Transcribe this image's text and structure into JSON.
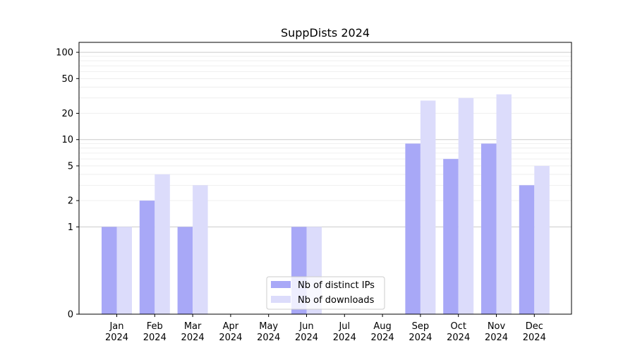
{
  "chart_data": {
    "type": "bar",
    "title": "SuppDists 2024",
    "xlabel": "",
    "ylabel": "",
    "yscale": "symlog",
    "ylim": [
      0,
      130
    ],
    "yticks": [
      0,
      1,
      2,
      5,
      10,
      20,
      50,
      100
    ],
    "grid": "y-axis, major and minor",
    "legend_position": "lower-center",
    "categories": [
      [
        "Jan",
        "2024"
      ],
      [
        "Feb",
        "2024"
      ],
      [
        "Mar",
        "2024"
      ],
      [
        "Apr",
        "2024"
      ],
      [
        "May",
        "2024"
      ],
      [
        "Jun",
        "2024"
      ],
      [
        "Jul",
        "2024"
      ],
      [
        "Aug",
        "2024"
      ],
      [
        "Sep",
        "2024"
      ],
      [
        "Oct",
        "2024"
      ],
      [
        "Nov",
        "2024"
      ],
      [
        "Dec",
        "2024"
      ]
    ],
    "series": [
      {
        "name": "Nb of distinct IPs",
        "color": "#a8a8f7",
        "values": [
          1,
          2,
          1,
          0,
          0,
          1,
          0,
          0,
          9,
          6,
          9,
          3
        ]
      },
      {
        "name": "Nb of downloads",
        "color": "#dcdcfb",
        "values": [
          1,
          4,
          3,
          0,
          0,
          1,
          0,
          0,
          28,
          30,
          33,
          5
        ]
      }
    ]
  }
}
